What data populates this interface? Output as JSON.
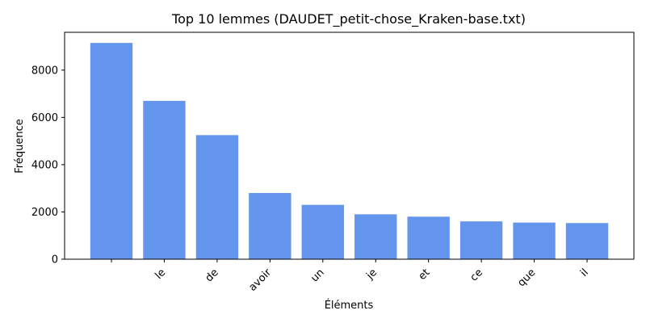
{
  "chart_data": {
    "type": "bar",
    "title": "Top 10 lemmes (DAUDET_petit-chose_Kraken-base.txt)",
    "xlabel": "Éléments",
    "ylabel": "Fréquence",
    "categories": [
      "",
      "le",
      "de",
      "avoir",
      "un",
      "je",
      "et",
      "ce",
      "que",
      "il"
    ],
    "values": [
      9150,
      6700,
      5250,
      2800,
      2300,
      1900,
      1800,
      1600,
      1550,
      1530
    ],
    "ylim": [
      0,
      9600
    ],
    "yticks": [
      0,
      2000,
      4000,
      6000,
      8000
    ],
    "grid": false,
    "bar_color": "#6495ed"
  }
}
